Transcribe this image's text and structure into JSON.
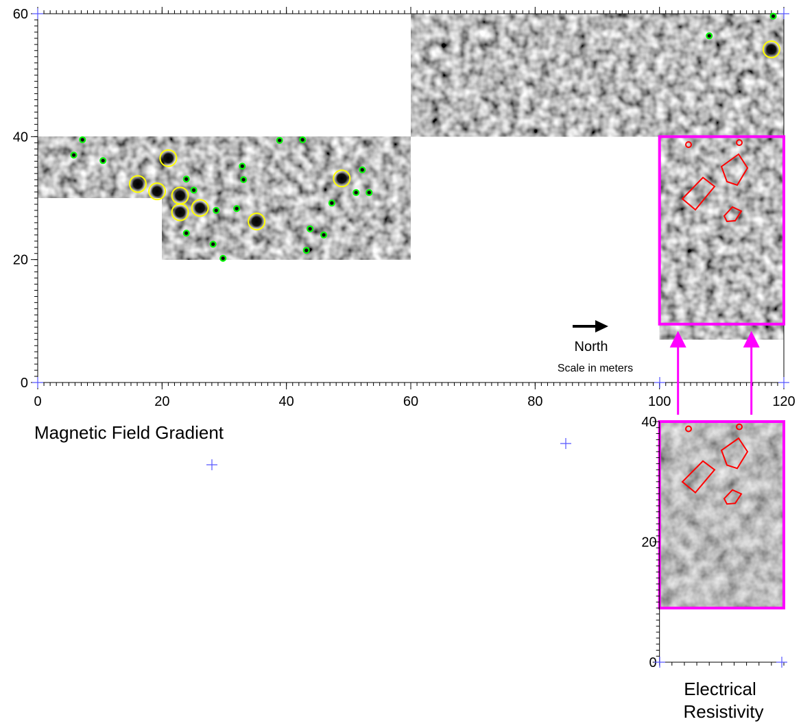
{
  "map": {
    "title": "Magnetic Field Gradient",
    "xlim": [
      0,
      120
    ],
    "ylim": [
      0,
      60
    ],
    "xticks": [
      0,
      20,
      40,
      60,
      80,
      100,
      120
    ],
    "yticks": [
      0,
      20,
      40,
      60
    ],
    "north_label": "North",
    "scale_note": "Scale in meters",
    "survey_blocks": [
      {
        "x": [
          0,
          20
        ],
        "y": [
          30,
          40
        ]
      },
      {
        "x": [
          20,
          60
        ],
        "y": [
          20,
          40
        ]
      },
      {
        "x": [
          60,
          120
        ],
        "y": [
          40,
          60
        ]
      },
      {
        "x": [
          100,
          120
        ],
        "y": [
          7,
          40
        ]
      }
    ],
    "resistivity_area": {
      "x": [
        100,
        120
      ],
      "y": [
        9.5,
        40
      ],
      "color": "#ff00ff"
    },
    "strong_anomalies": {
      "color": "#ffff00",
      "x": [
        16.1,
        19.2,
        21.0,
        22.9,
        22.9,
        26.1,
        35.2,
        48.9,
        118.0
      ],
      "y": [
        32.3,
        31.1,
        36.5,
        30.4,
        27.7,
        28.4,
        26.2,
        33.2,
        54.2
      ]
    },
    "weak_anomalies": {
      "color": "#00ff00",
      "x": [
        7.2,
        5.8,
        10.5,
        23.9,
        25.1,
        23.9,
        28.7,
        28.2,
        29.8,
        32.9,
        33.1,
        32.0,
        38.9,
        42.6,
        43.8,
        43.2,
        46.0,
        47.3,
        51.2,
        52.2,
        53.3,
        108.0,
        118.3
      ],
      "y": [
        39.5,
        37.0,
        36.1,
        33.1,
        31.3,
        24.3,
        28.0,
        22.5,
        20.2,
        35.2,
        33.0,
        28.3,
        39.4,
        39.5,
        25.0,
        21.5,
        24.0,
        29.2,
        30.9,
        34.6,
        30.9,
        56.4,
        59.6
      ]
    }
  },
  "inset": {
    "title_lines": [
      "Electrical",
      "Resistivity"
    ],
    "ylim": [
      0,
      40
    ],
    "yticks": [
      0,
      20,
      40
    ],
    "image_y": [
      9,
      40
    ]
  }
}
